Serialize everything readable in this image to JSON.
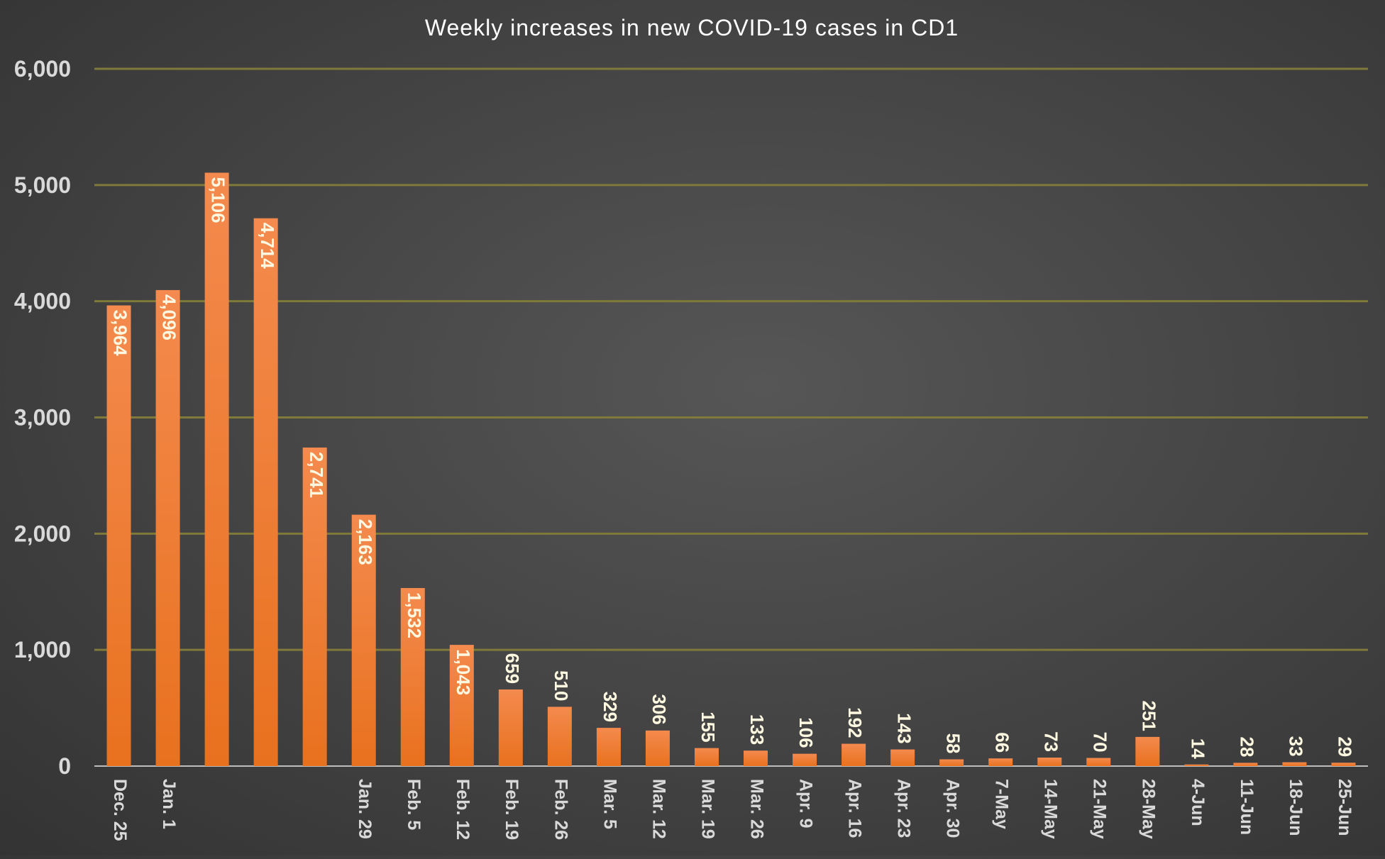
{
  "chart_data": {
    "type": "bar",
    "title": "Weekly increases in new COVID-19 cases in CD1",
    "xlabel": "",
    "ylabel": "",
    "ylim": [
      0,
      6000
    ],
    "y_ticks": [
      "0",
      "1,000",
      "2,000",
      "3,000",
      "4,000",
      "5,000",
      "6,000"
    ],
    "grid": true,
    "legend": "none",
    "categories": [
      "Dec. 25",
      "Jan. 1",
      "",
      "",
      "",
      "Jan. 29",
      "Feb. 5",
      "Feb. 12",
      "Feb. 19",
      "Feb. 26",
      "Mar. 5",
      "Mar. 12",
      "Mar. 19",
      "Mar. 26",
      "Apr. 9",
      "Apr. 16",
      "Apr. 23",
      "Apr. 30",
      "7-May",
      "14-May",
      "21-May",
      "28-May",
      "4-Jun",
      "11-Jun",
      "18-Jun",
      "25-Jun"
    ],
    "values": [
      3964,
      4096,
      5106,
      4714,
      2741,
      2163,
      1532,
      1043,
      659,
      510,
      329,
      306,
      155,
      133,
      106,
      192,
      143,
      58,
      66,
      73,
      70,
      251,
      14,
      28,
      33,
      29
    ],
    "value_labels": [
      "3,964",
      "4,096",
      "5,106",
      "4,714",
      "2,741",
      "2,163",
      "1,532",
      "1,043",
      "659",
      "510",
      "329",
      "306",
      "155",
      "133",
      "106",
      "192",
      "143",
      "58",
      "66",
      "73",
      "70",
      "251",
      "14",
      "28",
      "33",
      "29"
    ]
  },
  "colors": {
    "bar_top": "#F48A4E",
    "bar_bottom": "#E8711E",
    "gridline": "#7F7A3A",
    "axis_text": "#D9D9D9",
    "title_text": "#FFFFFF",
    "label_text": "#FFF8E0"
  }
}
